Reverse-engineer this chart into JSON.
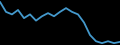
{
  "x": [
    0,
    1,
    2,
    3,
    4,
    5,
    6,
    7,
    8,
    9,
    10,
    11,
    12,
    13,
    14,
    15,
    16,
    17,
    18,
    19,
    20
  ],
  "y": [
    88,
    72,
    68,
    75,
    62,
    68,
    58,
    65,
    70,
    65,
    72,
    78,
    72,
    68,
    55,
    35,
    25,
    22,
    25,
    22,
    24
  ],
  "line_color": "#4499cc",
  "linewidth": 1.3,
  "background_color": "#000000"
}
